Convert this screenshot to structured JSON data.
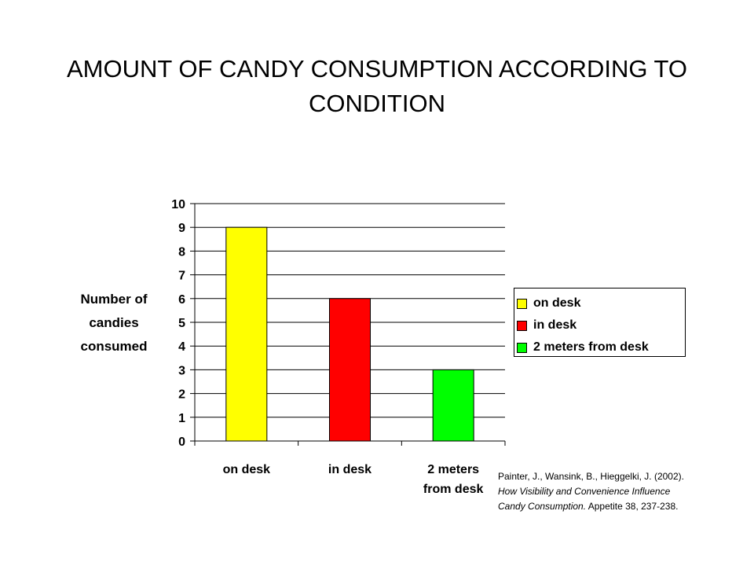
{
  "title": "AMOUNT OF CANDY CONSUMPTION ACCORDING TO CONDITION",
  "chart_data": {
    "type": "bar",
    "title": "AMOUNT OF CANDY CONSUMPTION ACCORDING TO CONDITION",
    "categories": [
      "on desk",
      "in desk",
      "2 meters from desk"
    ],
    "category_tick_labels": [
      [
        "on desk"
      ],
      [
        "in desk"
      ],
      [
        "2 meters",
        "from desk"
      ]
    ],
    "values": [
      9,
      6,
      3
    ],
    "colors": [
      "#ffff00",
      "#ff0000",
      "#00ff00"
    ],
    "ylabel_lines": [
      "Number of",
      "candies",
      "consumed"
    ],
    "xlabel": "",
    "ylim": [
      0,
      10
    ],
    "yticks": [
      "0",
      "1",
      "2",
      "3",
      "4",
      "5",
      "6",
      "7",
      "8",
      "9",
      "10"
    ],
    "grid": true,
    "legend": {
      "placement": "right",
      "entries": [
        {
          "label": "on desk",
          "color": "#ffff00"
        },
        {
          "label": "in desk",
          "color": "#ff0000"
        },
        {
          "label": "2 meters from desk",
          "color": "#00ff00"
        }
      ]
    }
  },
  "citation": {
    "part1": "Painter, J., Wansink, B., Hieggelki, J. (2002).",
    "part2_italic_a": "How Visibility and Convenience Influence",
    "part2_italic_b": "Candy Consumption.",
    "part3": " Appetite 38, 237-238."
  }
}
